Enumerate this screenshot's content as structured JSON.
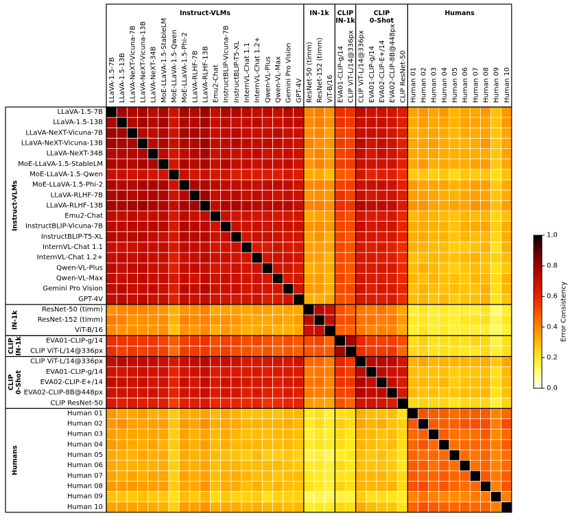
{
  "chart_data": {
    "type": "heatmap",
    "title": "",
    "colorbar": {
      "label": "Error Consistency",
      "range": [
        0.0,
        1.0
      ],
      "ticks": [
        "0.0",
        "0.2",
        "0.4",
        "0.6",
        "0.8",
        "1.0"
      ],
      "colormap": "hot_r"
    },
    "groups": [
      {
        "name": "Instruct-VLMs",
        "title_lines": [
          "Instruct-VLMs"
        ],
        "count": 19
      },
      {
        "name": "IN-1k",
        "title_lines": [
          "IN-1k"
        ],
        "count": 3
      },
      {
        "name": "CLIP IN-1k",
        "title_lines": [
          "CLIP",
          "IN-1k"
        ],
        "count": 2
      },
      {
        "name": "CLIP 0-Shot",
        "title_lines": [
          "CLIP",
          "0-Shot"
        ],
        "count": 5
      },
      {
        "name": "Humans",
        "title_lines": [
          "Humans"
        ],
        "count": 10
      }
    ],
    "labels": [
      "LLaVA-1.5-7B",
      "LLaVA-1.5-13B",
      "LLaVA-NeXT-Vicuna-7B",
      "LLaVA-NeXT-Vicuna-13B",
      "LLaVA-NeXT-34B",
      "MoE-LLaVA-1.5-StableLM",
      "MoE-LLaVA-1.5-Qwen",
      "MoE-LLaVA-1.5-Phi-2",
      "LLaVA-RLHF-7B",
      "LLaVA-RLHF-13B",
      "Emu2-Chat",
      "InstructBLIP-Vicuna-7B",
      "InstructBLIP-T5-XL",
      "InternVL-Chat 1.1",
      "InternVL-Chat 1.2+",
      "Qwen-VL-Plus",
      "Qwen-VL-Max",
      "Gemini Pro Vision",
      "GPT-4V",
      "ResNet-50 (timm)",
      "ResNet-152 (timm)",
      "ViT-B/16",
      "EVA01-CLIP-g/14",
      "CLIP ViT-L/14@336px",
      "CLIP ViT-L/14@336px",
      "EVA01-CLIP-g/14",
      "EVA02-CLIP-E+/14",
      "EVA02-CLIP-8B@448px",
      "CLIP ResNet-50",
      "Human 01",
      "Human 02",
      "Human 03",
      "Human 04",
      "Human 05",
      "Human 06",
      "Human 07",
      "Human 08",
      "Human 09",
      "Human 10"
    ],
    "block_mean": [
      [
        0.7,
        0.36,
        0.52,
        0.66,
        0.3
      ],
      [
        0.36,
        0.72,
        0.5,
        0.42,
        0.18
      ],
      [
        0.52,
        0.5,
        0.78,
        0.55,
        0.22
      ],
      [
        0.66,
        0.42,
        0.55,
        0.72,
        0.28
      ],
      [
        0.3,
        0.18,
        0.22,
        0.28,
        0.45
      ]
    ],
    "row_offsets": [
      0.08,
      0.07,
      0.06,
      0.07,
      0.04,
      0.05,
      -0.08,
      0.06,
      0.05,
      0.1,
      -0.02,
      0.02,
      0.0,
      -0.03,
      -0.02,
      -0.04,
      -0.03,
      -0.02,
      -0.04,
      0.0,
      0.02,
      -0.03,
      0.0,
      -0.02,
      0.06,
      0.0,
      0.01,
      -0.01,
      -0.12,
      0.03,
      0.06,
      0.02,
      0.02,
      -0.02,
      0.0,
      0.02,
      0.04,
      -0.1,
      0.03
    ],
    "diagonal": 1.0
  }
}
